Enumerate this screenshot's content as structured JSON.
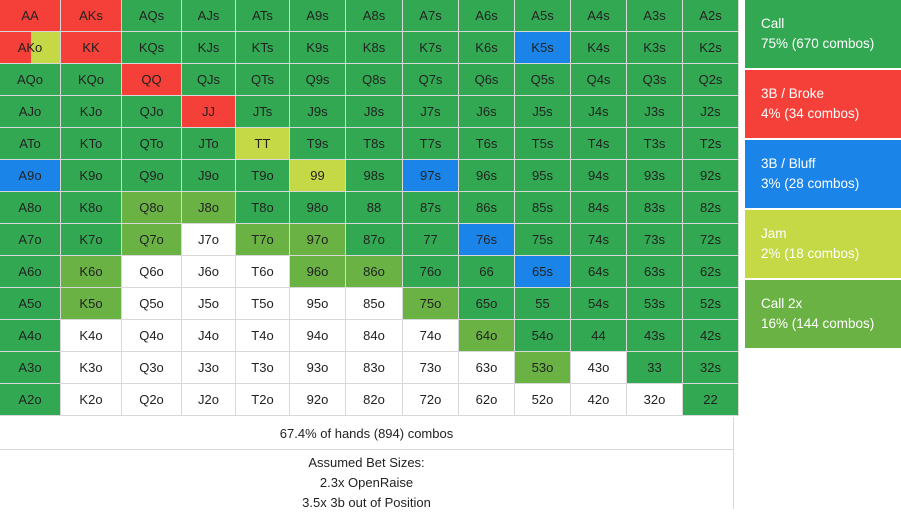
{
  "colors": {
    "call": "#33a853",
    "broke": "#f44038",
    "bluff": "#1a84e8",
    "jam": "#c4d945",
    "call2x": "#6ab244",
    "fold": "#ffffff"
  },
  "grid": {
    "rows": [
      [
        [
          "AA",
          "broke"
        ],
        [
          "AKs",
          "broke"
        ],
        [
          "AQs",
          "call"
        ],
        [
          "AJs",
          "call"
        ],
        [
          "ATs",
          "call"
        ],
        [
          "A9s",
          "call"
        ],
        [
          "A8s",
          "call"
        ],
        [
          "A7s",
          "call"
        ],
        [
          "A6s",
          "call"
        ],
        [
          "A5s",
          "call"
        ],
        [
          "A4s",
          "call"
        ],
        [
          "A3s",
          "call"
        ],
        [
          "A2s",
          "call"
        ]
      ],
      [
        [
          "AKo",
          "broke|jam"
        ],
        [
          "KK",
          "broke"
        ],
        [
          "KQs",
          "call"
        ],
        [
          "KJs",
          "call"
        ],
        [
          "KTs",
          "call"
        ],
        [
          "K9s",
          "call"
        ],
        [
          "K8s",
          "call"
        ],
        [
          "K7s",
          "call"
        ],
        [
          "K6s",
          "call"
        ],
        [
          "K5s",
          "bluff"
        ],
        [
          "K4s",
          "call"
        ],
        [
          "K3s",
          "call"
        ],
        [
          "K2s",
          "call"
        ]
      ],
      [
        [
          "AQo",
          "call"
        ],
        [
          "KQo",
          "call"
        ],
        [
          "QQ",
          "broke"
        ],
        [
          "QJs",
          "call"
        ],
        [
          "QTs",
          "call"
        ],
        [
          "Q9s",
          "call"
        ],
        [
          "Q8s",
          "call"
        ],
        [
          "Q7s",
          "call"
        ],
        [
          "Q6s",
          "call"
        ],
        [
          "Q5s",
          "call"
        ],
        [
          "Q4s",
          "call"
        ],
        [
          "Q3s",
          "call"
        ],
        [
          "Q2s",
          "call"
        ]
      ],
      [
        [
          "AJo",
          "call"
        ],
        [
          "KJo",
          "call"
        ],
        [
          "QJo",
          "call"
        ],
        [
          "JJ",
          "broke"
        ],
        [
          "JTs",
          "call"
        ],
        [
          "J9s",
          "call"
        ],
        [
          "J8s",
          "call"
        ],
        [
          "J7s",
          "call"
        ],
        [
          "J6s",
          "call"
        ],
        [
          "J5s",
          "call"
        ],
        [
          "J4s",
          "call"
        ],
        [
          "J3s",
          "call"
        ],
        [
          "J2s",
          "call"
        ]
      ],
      [
        [
          "ATo",
          "call"
        ],
        [
          "KTo",
          "call"
        ],
        [
          "QTo",
          "call"
        ],
        [
          "JTo",
          "call"
        ],
        [
          "TT",
          "jam"
        ],
        [
          "T9s",
          "call"
        ],
        [
          "T8s",
          "call"
        ],
        [
          "T7s",
          "call"
        ],
        [
          "T6s",
          "call"
        ],
        [
          "T5s",
          "call"
        ],
        [
          "T4s",
          "call"
        ],
        [
          "T3s",
          "call"
        ],
        [
          "T2s",
          "call"
        ]
      ],
      [
        [
          "A9o",
          "bluff"
        ],
        [
          "K9o",
          "call"
        ],
        [
          "Q9o",
          "call"
        ],
        [
          "J9o",
          "call"
        ],
        [
          "T9o",
          "call"
        ],
        [
          "99",
          "jam"
        ],
        [
          "98s",
          "call"
        ],
        [
          "97s",
          "bluff"
        ],
        [
          "96s",
          "call"
        ],
        [
          "95s",
          "call"
        ],
        [
          "94s",
          "call"
        ],
        [
          "93s",
          "call"
        ],
        [
          "92s",
          "call"
        ]
      ],
      [
        [
          "A8o",
          "call"
        ],
        [
          "K8o",
          "call"
        ],
        [
          "Q8o",
          "call2x"
        ],
        [
          "J8o",
          "call2x"
        ],
        [
          "T8o",
          "call"
        ],
        [
          "98o",
          "call"
        ],
        [
          "88",
          "call"
        ],
        [
          "87s",
          "call"
        ],
        [
          "86s",
          "call"
        ],
        [
          "85s",
          "call"
        ],
        [
          "84s",
          "call"
        ],
        [
          "83s",
          "call"
        ],
        [
          "82s",
          "call"
        ]
      ],
      [
        [
          "A7o",
          "call"
        ],
        [
          "K7o",
          "call"
        ],
        [
          "Q7o",
          "call2x"
        ],
        [
          "J7o",
          "fold"
        ],
        [
          "T7o",
          "call2x"
        ],
        [
          "97o",
          "call2x"
        ],
        [
          "87o",
          "call"
        ],
        [
          "77",
          "call"
        ],
        [
          "76s",
          "bluff"
        ],
        [
          "75s",
          "call"
        ],
        [
          "74s",
          "call"
        ],
        [
          "73s",
          "call"
        ],
        [
          "72s",
          "call"
        ]
      ],
      [
        [
          "A6o",
          "call"
        ],
        [
          "K6o",
          "call2x"
        ],
        [
          "Q6o",
          "fold"
        ],
        [
          "J6o",
          "fold"
        ],
        [
          "T6o",
          "fold"
        ],
        [
          "96o",
          "call2x"
        ],
        [
          "86o",
          "call2x"
        ],
        [
          "76o",
          "call"
        ],
        [
          "66",
          "call"
        ],
        [
          "65s",
          "bluff"
        ],
        [
          "64s",
          "call"
        ],
        [
          "63s",
          "call"
        ],
        [
          "62s",
          "call"
        ]
      ],
      [
        [
          "A5o",
          "call"
        ],
        [
          "K5o",
          "call2x"
        ],
        [
          "Q5o",
          "fold"
        ],
        [
          "J5o",
          "fold"
        ],
        [
          "T5o",
          "fold"
        ],
        [
          "95o",
          "fold"
        ],
        [
          "85o",
          "fold"
        ],
        [
          "75o",
          "call2x"
        ],
        [
          "65o",
          "call"
        ],
        [
          "55",
          "call"
        ],
        [
          "54s",
          "call"
        ],
        [
          "53s",
          "call"
        ],
        [
          "52s",
          "call"
        ]
      ],
      [
        [
          "A4o",
          "call"
        ],
        [
          "K4o",
          "fold"
        ],
        [
          "Q4o",
          "fold"
        ],
        [
          "J4o",
          "fold"
        ],
        [
          "T4o",
          "fold"
        ],
        [
          "94o",
          "fold"
        ],
        [
          "84o",
          "fold"
        ],
        [
          "74o",
          "fold"
        ],
        [
          "64o",
          "call2x"
        ],
        [
          "54o",
          "call"
        ],
        [
          "44",
          "call"
        ],
        [
          "43s",
          "call"
        ],
        [
          "42s",
          "call"
        ]
      ],
      [
        [
          "A3o",
          "call"
        ],
        [
          "K3o",
          "fold"
        ],
        [
          "Q3o",
          "fold"
        ],
        [
          "J3o",
          "fold"
        ],
        [
          "T3o",
          "fold"
        ],
        [
          "93o",
          "fold"
        ],
        [
          "83o",
          "fold"
        ],
        [
          "73o",
          "fold"
        ],
        [
          "63o",
          "fold"
        ],
        [
          "53o",
          "call2x"
        ],
        [
          "43o",
          "fold"
        ],
        [
          "33",
          "call"
        ],
        [
          "32s",
          "call"
        ]
      ],
      [
        [
          "A2o",
          "call"
        ],
        [
          "K2o",
          "fold"
        ],
        [
          "Q2o",
          "fold"
        ],
        [
          "J2o",
          "fold"
        ],
        [
          "T2o",
          "fold"
        ],
        [
          "92o",
          "fold"
        ],
        [
          "82o",
          "fold"
        ],
        [
          "72o",
          "fold"
        ],
        [
          "62o",
          "fold"
        ],
        [
          "52o",
          "fold"
        ],
        [
          "42o",
          "fold"
        ],
        [
          "32o",
          "fold"
        ],
        [
          "22",
          "call"
        ]
      ]
    ]
  },
  "summary": "67.4% of hands (894) combos",
  "bet_sizes": {
    "header": "Assumed Bet Sizes:",
    "lines": [
      "2.3x OpenRaise",
      "3.5x 3b out of Position"
    ]
  },
  "legend": [
    {
      "label": "Call",
      "value": "75% (670 combos)",
      "color": "call"
    },
    {
      "label": "3B / Broke",
      "value": "4% (34 combos)",
      "color": "broke"
    },
    {
      "label": "3B / Bluff",
      "value": "3% (28 combos)",
      "color": "bluff"
    },
    {
      "label": "Jam",
      "value": "2% (18 combos)",
      "color": "jam"
    },
    {
      "label": "Call 2x",
      "value": "16% (144 combos)",
      "color": "call2x"
    }
  ]
}
